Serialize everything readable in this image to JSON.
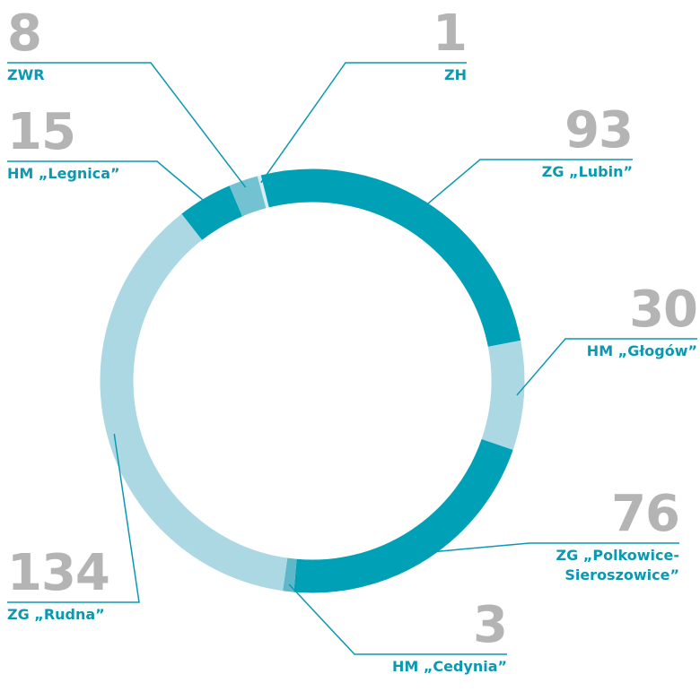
{
  "chart_data": {
    "type": "donut",
    "categories": [
      "ZH",
      "ZG „Lubin”",
      "HM „Głogów”",
      "ZG „Polkowice-Sieroszowice”",
      "HM „Cedynia”",
      "ZG „Rudna”",
      "HM „Legnica”",
      "ZWR"
    ],
    "values": [
      1,
      93,
      30,
      76,
      3,
      134,
      15,
      8
    ],
    "colors": [
      "#d6eef3",
      "#00a0b6",
      "#acd8e4",
      "#00a0b6",
      "#5fb8ca",
      "#acd8e4",
      "#00a0b6",
      "#72c2d2"
    ]
  }
}
